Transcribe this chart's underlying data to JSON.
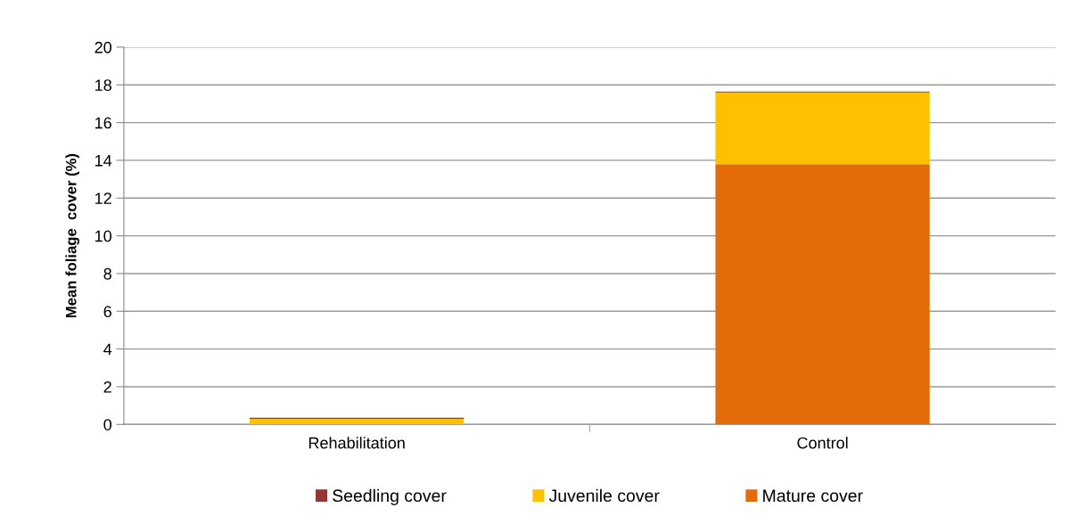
{
  "chart_data": {
    "type": "bar",
    "stacked": true,
    "ylabel": "Mean foliage  cover (%)",
    "categories": [
      "Rehabilitation",
      "Control"
    ],
    "series": [
      {
        "name": "Mature cover",
        "color": "#e36c09",
        "values": [
          0,
          13.8
        ]
      },
      {
        "name": "Juvenile cover",
        "color": "#ffc000",
        "values": [
          0.3,
          3.8
        ]
      },
      {
        "name": "Seedling cover",
        "color": "#953735",
        "values": [
          0.05,
          0.05
        ]
      }
    ],
    "ylim": [
      0,
      20
    ],
    "yticks": [
      0,
      2,
      4,
      6,
      8,
      10,
      12,
      14,
      16,
      18,
      20
    ],
    "grid": "y",
    "legend": "bottom"
  }
}
